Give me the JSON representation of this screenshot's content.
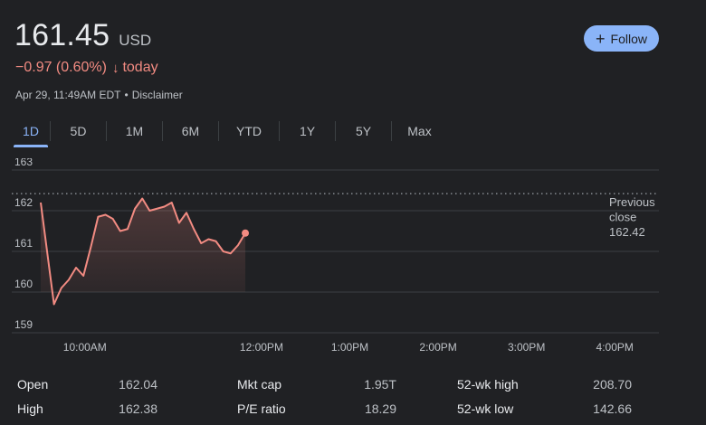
{
  "quote": {
    "price": "161.45",
    "currency": "USD",
    "change": "−0.97 (0.60%)",
    "change_arrow": "↓",
    "change_period": "today",
    "timestamp": "Apr 29, 11:49AM EDT",
    "separator": "•",
    "disclaimer": "Disclaimer"
  },
  "follow_button": {
    "icon": "plus-icon",
    "label": "Follow"
  },
  "tabs": [
    {
      "label": "1D",
      "active": true
    },
    {
      "label": "5D",
      "active": false
    },
    {
      "label": "1M",
      "active": false
    },
    {
      "label": "6M",
      "active": false
    },
    {
      "label": "YTD",
      "active": false
    },
    {
      "label": "1Y",
      "active": false
    },
    {
      "label": "5Y",
      "active": false
    },
    {
      "label": "Max",
      "active": false
    }
  ],
  "chart_data": {
    "type": "area",
    "y_ticks": [
      163,
      162,
      161,
      160,
      159
    ],
    "ylim": [
      159,
      163
    ],
    "x_tick_labels": [
      "10:00AM",
      "12:00PM",
      "1:00PM",
      "2:00PM",
      "3:00PM",
      "4:00PM"
    ],
    "x_ticks_minutes": [
      30,
      150,
      210,
      270,
      330,
      390
    ],
    "xlim_minutes": [
      0,
      420
    ],
    "series": [
      {
        "minutes": [
          0,
          9,
          14,
          19,
          24,
          29,
          34,
          39,
          44,
          49,
          54,
          59,
          64,
          69,
          74,
          79,
          84,
          89,
          94,
          99,
          104,
          109,
          114,
          119,
          124,
          129,
          134,
          139
        ],
        "values": [
          162.2,
          159.7,
          160.1,
          160.3,
          160.6,
          160.4,
          161.1,
          161.85,
          161.9,
          161.8,
          161.5,
          161.55,
          162.05,
          162.3,
          162.0,
          162.05,
          162.1,
          162.2,
          161.7,
          161.95,
          161.55,
          161.2,
          161.3,
          161.25,
          161.0,
          160.95,
          161.15,
          161.45
        ]
      }
    ],
    "line_color": "#f28b82",
    "previous_close": 162.42,
    "previous_close_label": [
      "Previous",
      "close",
      "162.42"
    ],
    "grid": true
  },
  "stats": {
    "col1": [
      {
        "label": "Open",
        "value": "162.04"
      },
      {
        "label": "High",
        "value": "162.38"
      }
    ],
    "col2": [
      {
        "label": "Mkt cap",
        "value": "1.95T"
      },
      {
        "label": "P/E ratio",
        "value": "18.29"
      }
    ],
    "col3": [
      {
        "label": "52-wk high",
        "value": "208.70"
      },
      {
        "label": "52-wk low",
        "value": "142.66"
      }
    ]
  },
  "colors": {
    "background": "#202124",
    "accent": "#8ab4f8",
    "negative": "#f28b82",
    "grid": "#3c4043",
    "muted_text": "#bdc1c6"
  }
}
